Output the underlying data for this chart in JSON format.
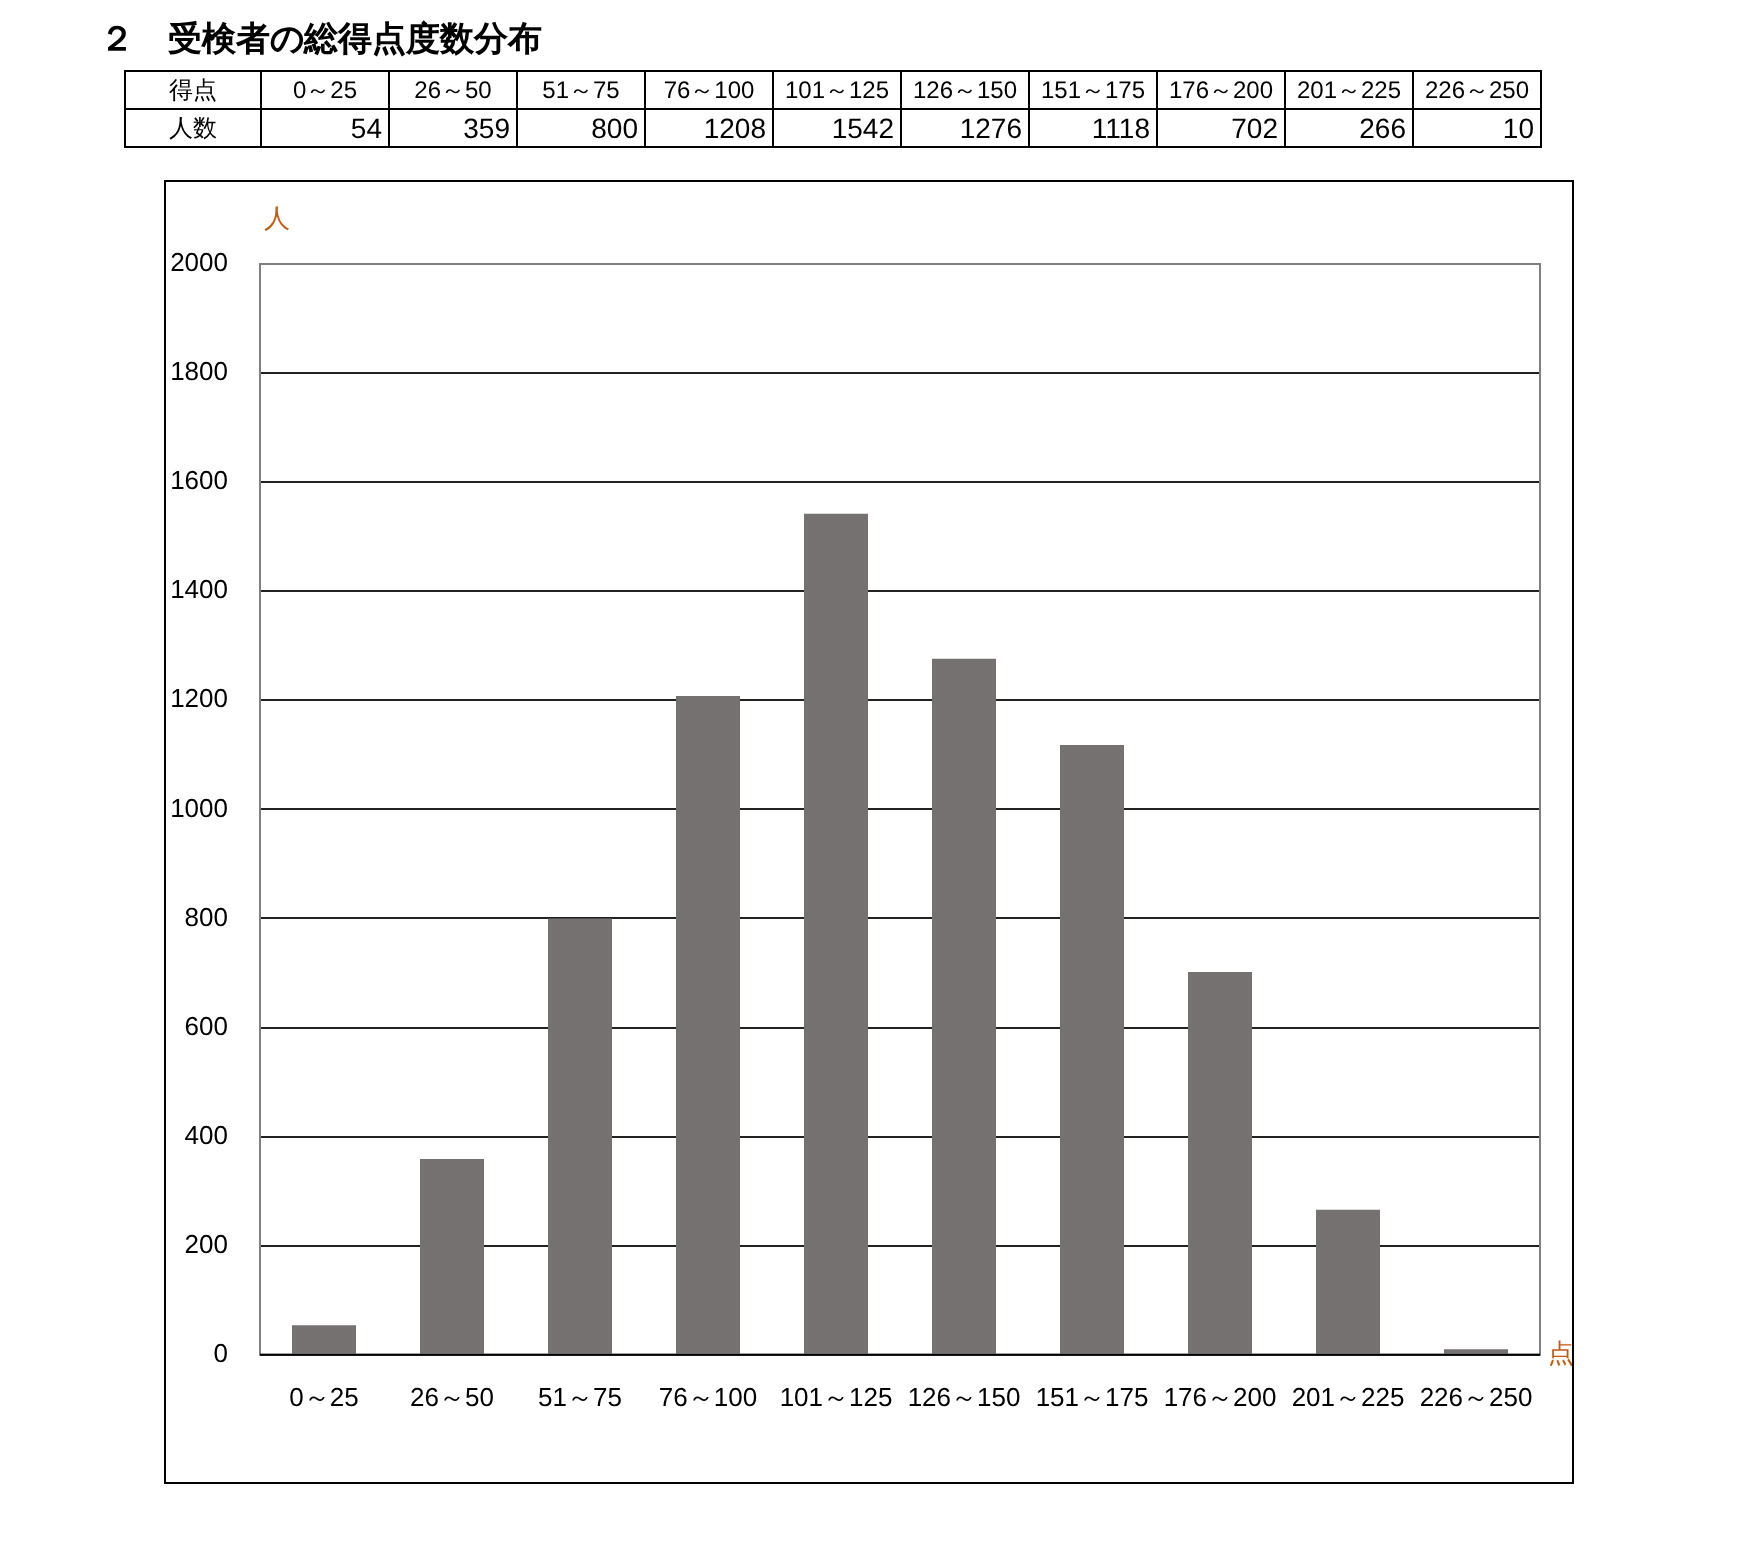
{
  "chart_data": {
    "type": "bar",
    "title": "２　受検者の総得点度数分布",
    "xlabel": "点",
    "ylabel": "人",
    "annotations": [
      "得点",
      "人数"
    ],
    "categories": [
      "0～25",
      "26～50",
      "51～75",
      "76～100",
      "101～125",
      "126～150",
      "151～175",
      "176～200",
      "201～225",
      "226～250"
    ],
    "values": [
      54,
      359,
      800,
      1208,
      1542,
      1276,
      1118,
      702,
      266,
      10
    ],
    "color": "#767171",
    "data_labels": true,
    "ylim": [
      0,
      2000
    ],
    "yticks": [
      0,
      200,
      400,
      600,
      800,
      1000,
      1200,
      1400,
      1600,
      1800,
      2000
    ],
    "grid": "y",
    "legend": false
  }
}
